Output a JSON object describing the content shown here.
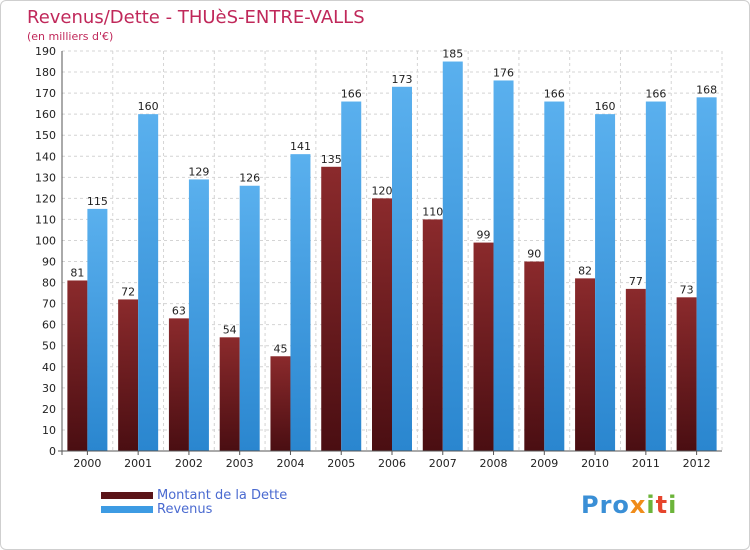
{
  "chart_data": {
    "type": "bar",
    "title": "Revenus/Dette - THUèS-ENTRE-VALLS",
    "subtitle": "(en milliers d'€)",
    "categories": [
      "2000",
      "2001",
      "2002",
      "2003",
      "2004",
      "2005",
      "2006",
      "2007",
      "2008",
      "2009",
      "2010",
      "2011",
      "2012"
    ],
    "series": [
      {
        "name": "Montant de la Dette",
        "color": "#8b1e26",
        "values": [
          81,
          72,
          63,
          54,
          45,
          135,
          120,
          110,
          99,
          90,
          82,
          77,
          73
        ]
      },
      {
        "name": "Revenus",
        "color": "#3d9be3",
        "values": [
          115,
          160,
          129,
          126,
          141,
          166,
          173,
          185,
          176,
          166,
          160,
          166,
          168
        ]
      }
    ],
    "ylim": [
      0,
      190
    ],
    "yticks": [
      0,
      10,
      20,
      30,
      40,
      50,
      60,
      70,
      80,
      90,
      100,
      110,
      120,
      130,
      140,
      150,
      160,
      170,
      180,
      190
    ],
    "grid": true,
    "legend_position": "bottom-left"
  },
  "logo_text": "Proxiti"
}
